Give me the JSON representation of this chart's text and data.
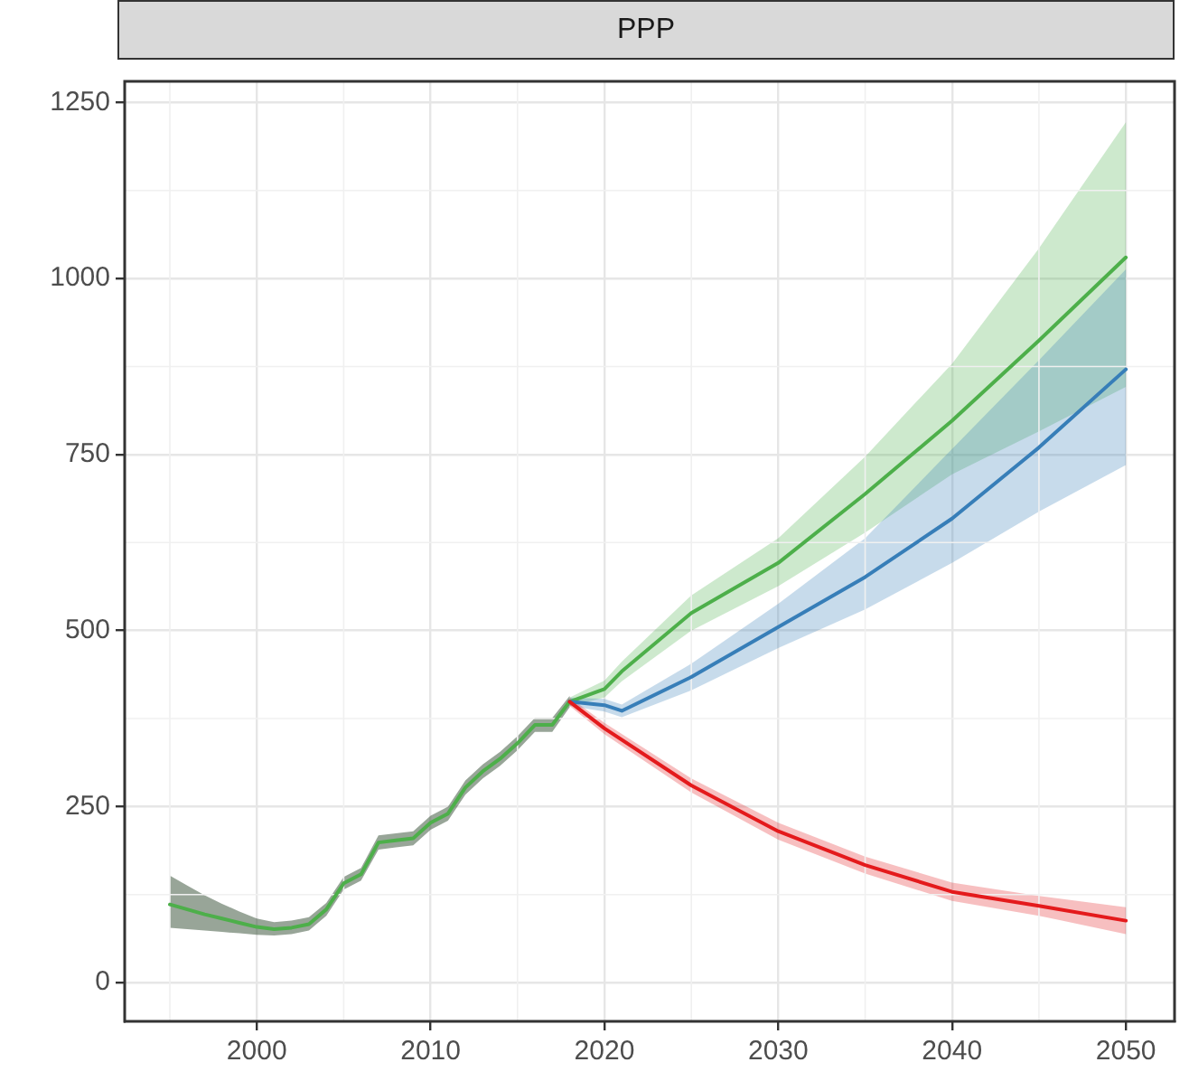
{
  "chart_data": {
    "type": "line",
    "title": "PPP",
    "series": [
      {
        "color": "#4daf4a",
        "x": [
          1995,
          1996,
          1997,
          1998,
          1999,
          2000,
          2001,
          2002,
          2003,
          2004,
          2005,
          2006,
          2007,
          2008,
          2009,
          2010,
          2011,
          2012,
          2013,
          2014,
          2015,
          2016,
          2017,
          2018
        ],
        "values": [
          111,
          104,
          97,
          91,
          85,
          79,
          76,
          78,
          83,
          104,
          141,
          154,
          199,
          202,
          205,
          227,
          240,
          277,
          300,
          318,
          340,
          366,
          366,
          399
        ],
        "lower": [
          78,
          76,
          74,
          72,
          70,
          68,
          67,
          69,
          74,
          95,
          132,
          145,
          189,
          192,
          195,
          217,
          230,
          267,
          290,
          308,
          330,
          356,
          356,
          391
        ],
        "upper": [
          152,
          138,
          124,
          112,
          101,
          91,
          86,
          88,
          93,
          113,
          150,
          163,
          209,
          212,
          215,
          237,
          250,
          287,
          310,
          328,
          350,
          376,
          376,
          407
        ]
      },
      {
        "color": "#4daf4a",
        "x": [
          2018,
          2020,
          2021,
          2025,
          2030,
          2035,
          2040,
          2045,
          2050
        ],
        "values": [
          399,
          417,
          442,
          525,
          596,
          694,
          798,
          912,
          1030
        ],
        "lower": [
          393,
          405,
          428,
          500,
          563,
          639,
          722,
          783,
          846
        ],
        "upper": [
          405,
          429,
          456,
          550,
          631,
          747,
          879,
          1043,
          1222
        ]
      },
      {
        "color": "#377eb8",
        "x": [
          2018,
          2020,
          2021,
          2025,
          2030,
          2035,
          2040,
          2045,
          2050
        ],
        "values": [
          399,
          394,
          386,
          434,
          505,
          576,
          659,
          760,
          871
        ],
        "lower": [
          393,
          385,
          377,
          415,
          475,
          530,
          596,
          669,
          735
        ],
        "upper": [
          405,
          403,
          395,
          453,
          538,
          631,
          758,
          884,
          1013
        ]
      },
      {
        "color": "#e41a1c",
        "x": [
          2018,
          2020,
          2025,
          2030,
          2035,
          2040,
          2045,
          2050
        ],
        "values": [
          399,
          361,
          280,
          215,
          167,
          129,
          109,
          88
        ],
        "lower": [
          393,
          353,
          270,
          203,
          155,
          116,
          95,
          69
        ],
        "upper": [
          405,
          369,
          290,
          227,
          179,
          142,
          123,
          107
        ]
      }
    ],
    "xlim": [
      1992.4,
      2052.8
    ],
    "xticks": [
      2000,
      2010,
      2020,
      2030,
      2040,
      2050
    ],
    "ylim": [
      -55,
      1280
    ],
    "yticks": [
      0,
      250,
      500,
      750,
      1000,
      1250
    ],
    "grid": true,
    "legend": false,
    "marker": "none",
    "line_style": "solid"
  }
}
